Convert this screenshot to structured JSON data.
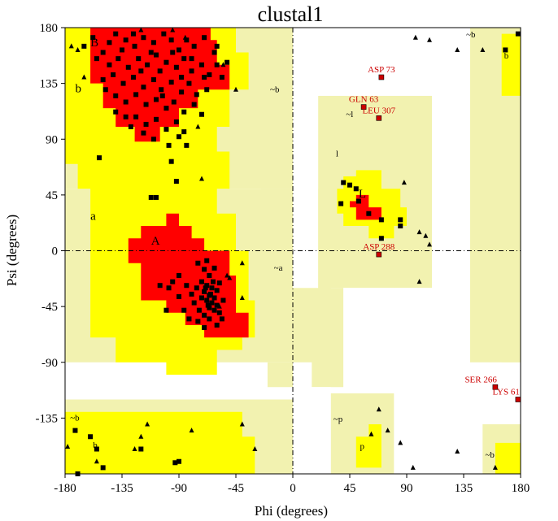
{
  "chart_data": {
    "type": "scatter",
    "title": "clustal1",
    "xlabel": "Phi (degrees)",
    "ylabel": "Psi (degrees)",
    "xlim": [
      -180,
      180
    ],
    "ylim": [
      -180,
      180
    ],
    "x_ticks": [
      -180,
      -135,
      -90,
      -45,
      0,
      45,
      90,
      135,
      180
    ],
    "y_ticks": [
      -135,
      -90,
      -45,
      0,
      45,
      90,
      135,
      180
    ],
    "colors": {
      "core": "#ff0000",
      "allowed": "#ffff00",
      "generous": "#f2f2b0",
      "outline": "#000000",
      "point": "#000000",
      "outlier": "#cc0000"
    },
    "region_labels": [
      {
        "text": "B",
        "phi": -160,
        "psi": 165,
        "size": "large"
      },
      {
        "text": "b",
        "phi": -172,
        "psi": 128,
        "size": "large"
      },
      {
        "text": "a",
        "phi": -160,
        "psi": 25,
        "size": "large"
      },
      {
        "text": "A",
        "phi": -112,
        "psi": 5,
        "size": "large"
      },
      {
        "text": "~b",
        "phi": -18,
        "psi": 128,
        "size": "small"
      },
      {
        "text": "~a",
        "phi": -15,
        "psi": -16,
        "size": "small"
      },
      {
        "text": "~l",
        "phi": 42,
        "psi": 108,
        "size": "small"
      },
      {
        "text": "l",
        "phi": 34,
        "psi": 76,
        "size": "small"
      },
      {
        "text": "L",
        "phi": 52,
        "psi": 43,
        "size": "large"
      },
      {
        "text": "~b",
        "phi": 137,
        "psi": 172,
        "size": "small"
      },
      {
        "text": "b",
        "phi": 167,
        "psi": 155,
        "size": "small"
      },
      {
        "text": "~b",
        "phi": -176,
        "psi": -137,
        "size": "small"
      },
      {
        "text": "b",
        "phi": -158,
        "psi": -159,
        "size": "small"
      },
      {
        "text": "~p",
        "phi": 32,
        "psi": -138,
        "size": "small"
      },
      {
        "text": "p",
        "phi": 53,
        "psi": -160,
        "size": "small"
      },
      {
        "text": "~b",
        "phi": 152,
        "psi": -167,
        "size": "small"
      }
    ],
    "labeled_outliers": [
      {
        "label": "ASP 73",
        "phi": 70,
        "psi": 140
      },
      {
        "label": "GLN 63",
        "phi": 56,
        "psi": 116
      },
      {
        "label": "LEU 307",
        "phi": 68,
        "psi": 107
      },
      {
        "label": "ASP 288",
        "phi": 68,
        "psi": -3
      },
      {
        "label": "SER 266",
        "phi": 160,
        "psi": -110
      },
      {
        "label": "LYS 61",
        "phi": 178,
        "psi": -120
      }
    ],
    "squares": [
      [
        -165,
        165
      ],
      [
        -158,
        172
      ],
      [
        -150,
        160
      ],
      [
        -145,
        168
      ],
      [
        -140,
        175
      ],
      [
        -132,
        170
      ],
      [
        -125,
        165
      ],
      [
        -118,
        172
      ],
      [
        -110,
        168
      ],
      [
        -102,
        175
      ],
      [
        -96,
        170
      ],
      [
        -90,
        162
      ],
      [
        -84,
        170
      ],
      [
        -78,
        165
      ],
      [
        -70,
        172
      ],
      [
        -62,
        160
      ],
      [
        -145,
        150
      ],
      [
        -138,
        155
      ],
      [
        -130,
        148
      ],
      [
        -122,
        155
      ],
      [
        -115,
        150
      ],
      [
        -108,
        158
      ],
      [
        -100,
        152
      ],
      [
        -92,
        148
      ],
      [
        -86,
        155
      ],
      [
        -80,
        145
      ],
      [
        -72,
        150
      ],
      [
        -66,
        142
      ],
      [
        -60,
        150
      ],
      [
        -150,
        138
      ],
      [
        -142,
        142
      ],
      [
        -134,
        135
      ],
      [
        -126,
        140
      ],
      [
        -118,
        132
      ],
      [
        -110,
        138
      ],
      [
        -104,
        130
      ],
      [
        -96,
        136
      ],
      [
        -88,
        128
      ],
      [
        -82,
        135
      ],
      [
        -76,
        126
      ],
      [
        -68,
        130
      ],
      [
        -140,
        125
      ],
      [
        -132,
        120
      ],
      [
        -124,
        126
      ],
      [
        -116,
        118
      ],
      [
        -108,
        122
      ],
      [
        -100,
        115
      ],
      [
        -94,
        120
      ],
      [
        -86,
        112
      ],
      [
        -78,
        118
      ],
      [
        -72,
        110
      ],
      [
        -124,
        108
      ],
      [
        -116,
        102
      ],
      [
        -108,
        106
      ],
      [
        -100,
        98
      ],
      [
        -92,
        104
      ],
      [
        -86,
        96
      ],
      [
        -110,
        90
      ],
      [
        -98,
        85
      ],
      [
        -90,
        92
      ],
      [
        -140,
        112
      ],
      [
        -128,
        100
      ],
      [
        -118,
        95
      ],
      [
        -155,
        155
      ],
      [
        -135,
        162
      ],
      [
        -120,
        145
      ],
      [
        -105,
        145
      ],
      [
        -95,
        160
      ],
      [
        -80,
        155
      ],
      [
        -70,
        140
      ],
      [
        -88,
        140
      ],
      [
        -112,
        160
      ],
      [
        -126,
        175
      ],
      [
        -60,
        165
      ],
      [
        -56,
        140
      ],
      [
        -52,
        152
      ],
      [
        -148,
        130
      ],
      [
        -132,
        108
      ],
      [
        -103,
        125
      ],
      [
        -84,
        85
      ],
      [
        -96,
        72
      ],
      [
        -92,
        56
      ],
      [
        -108,
        43
      ],
      [
        -112,
        43
      ],
      [
        -153,
        75
      ],
      [
        -75,
        -10
      ],
      [
        -70,
        -15
      ],
      [
        -66,
        -20
      ],
      [
        -72,
        -25
      ],
      [
        -68,
        -28
      ],
      [
        -64,
        -30
      ],
      [
        -70,
        -33
      ],
      [
        -66,
        -36
      ],
      [
        -62,
        -38
      ],
      [
        -68,
        -40
      ],
      [
        -64,
        -42
      ],
      [
        -60,
        -44
      ],
      [
        -66,
        -46
      ],
      [
        -62,
        -48
      ],
      [
        -58,
        -50
      ],
      [
        -72,
        -38
      ],
      [
        -76,
        -30
      ],
      [
        -80,
        -35
      ],
      [
        -84,
        -28
      ],
      [
        -78,
        -42
      ],
      [
        -74,
        -48
      ],
      [
        -70,
        -52
      ],
      [
        -66,
        -55
      ],
      [
        -90,
        -20
      ],
      [
        -86,
        -48
      ],
      [
        -82,
        -55
      ],
      [
        -95,
        -25
      ],
      [
        -98,
        -30
      ],
      [
        -100,
        -48
      ],
      [
        -105,
        -28
      ],
      [
        -60,
        -32
      ],
      [
        -58,
        -26
      ],
      [
        -62,
        -14
      ],
      [
        -68,
        -8
      ],
      [
        -55,
        -40
      ],
      [
        -56,
        -55
      ],
      [
        -60,
        -60
      ],
      [
        -75,
        -57
      ],
      [
        -90,
        -37
      ],
      [
        -70,
        -62
      ],
      [
        -65,
        -35
      ],
      [
        -67,
        -44
      ],
      [
        -63,
        -25
      ],
      [
        -69,
        -30
      ],
      [
        40,
        55
      ],
      [
        45,
        53
      ],
      [
        38,
        38
      ],
      [
        52,
        40
      ],
      [
        60,
        30
      ],
      [
        70,
        25
      ],
      [
        85,
        25
      ],
      [
        85,
        20
      ],
      [
        70,
        10
      ],
      [
        50,
        50
      ],
      [
        -170,
        -180
      ],
      [
        -150,
        -175
      ],
      [
        -155,
        -160
      ],
      [
        -160,
        -150
      ],
      [
        -120,
        -160
      ],
      [
        -90,
        -170
      ],
      [
        -93,
        -171
      ],
      [
        -172,
        -145
      ],
      [
        168,
        162
      ],
      [
        178,
        175
      ]
    ],
    "triangles": [
      [
        -175,
        165
      ],
      [
        -170,
        162
      ],
      [
        -120,
        178
      ],
      [
        -95,
        178
      ],
      [
        -85,
        172
      ],
      [
        -55,
        150
      ],
      [
        -45,
        130
      ],
      [
        -165,
        140
      ],
      [
        -75,
        100
      ],
      [
        -72,
        58
      ],
      [
        -40,
        -10
      ],
      [
        -50,
        -22
      ],
      [
        -40,
        -38
      ],
      [
        -58,
        -45
      ],
      [
        -52,
        -20
      ],
      [
        88,
        55
      ],
      [
        108,
        170
      ],
      [
        97,
        172
      ],
      [
        130,
        162
      ],
      [
        150,
        162
      ],
      [
        100,
        15
      ],
      [
        105,
        12
      ],
      [
        108,
        5
      ],
      [
        100,
        -25
      ],
      [
        -178,
        -158
      ],
      [
        -155,
        -170
      ],
      [
        -115,
        -140
      ],
      [
        -120,
        -150
      ],
      [
        -125,
        -160
      ],
      [
        -80,
        -145
      ],
      [
        -40,
        -140
      ],
      [
        -30,
        -160
      ],
      [
        62,
        -148
      ],
      [
        68,
        -128
      ],
      [
        75,
        -145
      ],
      [
        85,
        -155
      ],
      [
        130,
        -162
      ],
      [
        160,
        -175
      ],
      [
        95,
        -175
      ]
    ]
  }
}
